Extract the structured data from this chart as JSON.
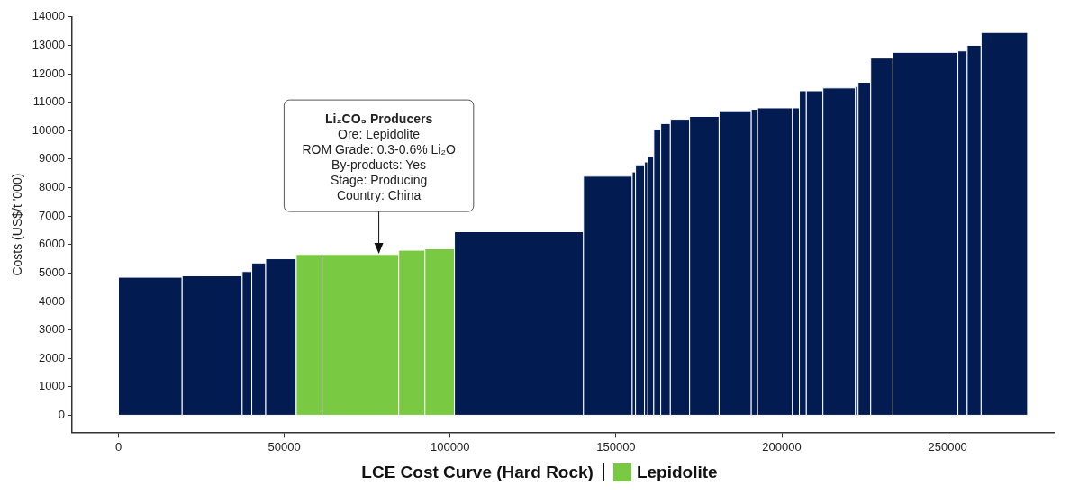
{
  "chart_data": {
    "type": "histogram",
    "xlabel": "LCE Cost Curve (Hard Rock)",
    "ylabel": "Costs (US$/t '000)",
    "bins": [
      0,
      19200,
      37300,
      40200,
      44400,
      53600,
      61400,
      84500,
      92400,
      101300,
      140200,
      154900,
      155900,
      158600,
      159600,
      161400,
      163500,
      166400,
      172200,
      181100,
      190800,
      192700,
      203200,
      205300,
      207400,
      212400,
      222200,
      223000,
      226800,
      233500,
      253100,
      255900,
      260100,
      274100
    ],
    "series": [
      {
        "color": "#021c52",
        "values": [
          4850,
          4900,
          5050,
          5350,
          5500,
          null,
          null,
          null,
          null,
          6450,
          8400,
          8550,
          8800,
          8900,
          9100,
          10050,
          10250,
          10400,
          10500,
          10700,
          10750,
          10800,
          10800,
          11400,
          11400,
          11500,
          11550,
          11700,
          12550,
          12750,
          12800,
          13000,
          13450
        ]
      },
      {
        "name": "Lepidolite",
        "color": "#7ac943",
        "values": [
          null,
          null,
          null,
          null,
          null,
          5650,
          5650,
          5800,
          5850,
          null,
          null,
          null,
          null,
          null,
          null,
          null,
          null,
          null,
          null,
          null,
          null,
          null,
          null,
          null,
          null,
          null,
          null,
          null,
          null,
          null,
          null,
          null,
          null
        ]
      }
    ],
    "xlim": [
      -14000,
      282000
    ],
    "xticks": [
      0,
      50000,
      100000,
      150000,
      200000,
      250000
    ],
    "ylim": [
      -600,
      14000
    ],
    "yticks": [
      0,
      1000,
      2000,
      3000,
      4000,
      5000,
      6000,
      7000,
      8000,
      9000,
      10000,
      11000,
      12000,
      13000,
      14000
    ],
    "legend": "bottom",
    "annotations": [
      {
        "text": "Li₂CO₃ Producers\nOre: Lepidolite\nROM Grade: 0.3-0.6% Li₂O\nBy-products: Yes\nStage: Producing\nCountry: China",
        "x": 78500,
        "y": 5640
      }
    ]
  }
}
